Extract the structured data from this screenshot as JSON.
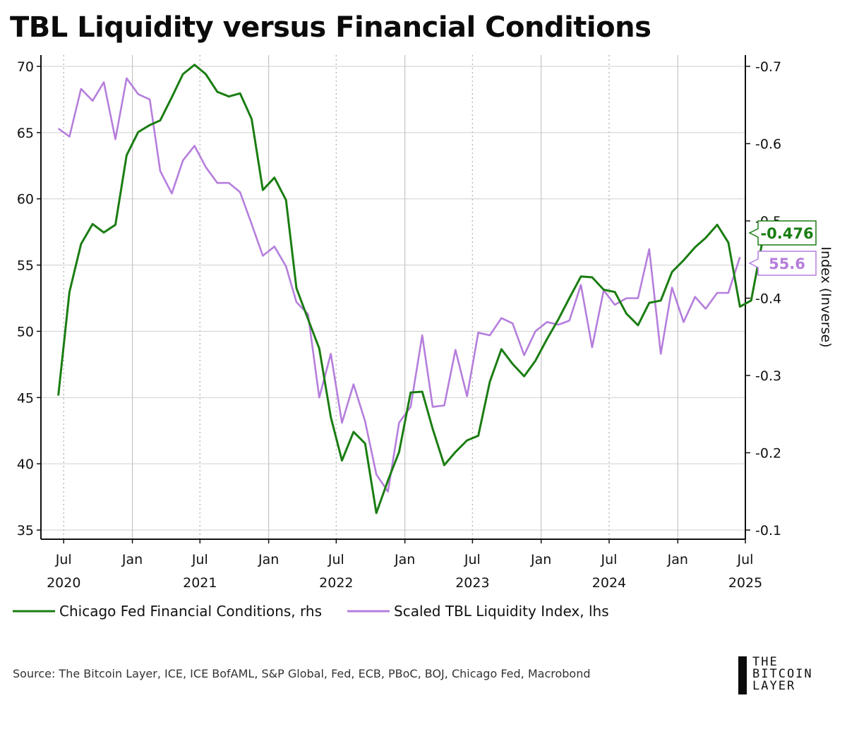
{
  "title": "TBL Liquidity versus Financial Conditions",
  "source": "Source: The Bitcoin Layer, ICE, ICE BofAML, S&P Global, Fed, ECB, PBoC, BOJ, Chicago Fed, Macrobond",
  "logo": {
    "line1": "THE",
    "line2": "BITCOIN",
    "line3": "LAYER"
  },
  "colors": {
    "green": "#1a7d12",
    "purple": "#b57edc",
    "grid": "#cfcfcf",
    "axis": "#111111"
  },
  "chart_data": {
    "type": "line",
    "right_axis_label": "Index (Inverse)",
    "x_tick_months": [
      "Jul",
      "Jan",
      "Jul",
      "Jan",
      "Jul",
      "Jan",
      "Jul",
      "Jan",
      "Jul",
      "Jan",
      "Jul"
    ],
    "x_tick_years": [
      "2020",
      "2021",
      "2022",
      "2023",
      "2024",
      "2025"
    ],
    "y_left": {
      "ticks": [
        "70",
        "65",
        "60",
        "55",
        "50",
        "45",
        "40",
        "35"
      ],
      "range": [
        35,
        70
      ]
    },
    "y_right": {
      "ticks": [
        "-0.7",
        "-0.6",
        "-0.5",
        "-0.4",
        "-0.3",
        "-0.2",
        "-0.1"
      ],
      "range": [
        -0.1,
        -0.7
      ],
      "inverted": true
    },
    "x_range": [
      "2020-05-01",
      "2025-07-01"
    ],
    "series": [
      {
        "name": "Chicago Fed Financial Conditions, rhs",
        "axis": "right",
        "start": "2020-06",
        "last_value_label": "-0.476",
        "values": [
          -0.274,
          -0.408,
          -0.47,
          -0.496,
          -0.485,
          -0.495,
          -0.585,
          -0.615,
          -0.624,
          -0.63,
          -0.66,
          -0.69,
          -0.702,
          -0.69,
          -0.667,
          -0.661,
          -0.665,
          -0.632,
          -0.54,
          -0.556,
          -0.527,
          -0.413,
          -0.373,
          -0.335,
          -0.246,
          -0.19,
          -0.227,
          -0.212,
          -0.122,
          -0.164,
          -0.201,
          -0.278,
          -0.279,
          -0.231,
          -0.184,
          -0.201,
          -0.216,
          -0.222,
          -0.292,
          -0.334,
          -0.315,
          -0.299,
          -0.319,
          -0.347,
          -0.373,
          -0.4,
          -0.428,
          -0.427,
          -0.411,
          -0.408,
          -0.38,
          -0.365,
          -0.394,
          -0.397,
          -0.434,
          -0.449,
          -0.466,
          -0.478,
          -0.495,
          -0.472,
          -0.389,
          -0.397,
          -0.476
        ]
      },
      {
        "name": "Scaled TBL Liquidity Index, lhs",
        "axis": "left",
        "start": "2020-06",
        "last_value_label": "55.6",
        "values": [
          65.3,
          64.7,
          68.3,
          67.4,
          68.8,
          64.5,
          69.1,
          67.9,
          67.5,
          62.1,
          60.4,
          62.9,
          64.0,
          62.4,
          61.2,
          61.2,
          60.5,
          58.1,
          55.7,
          56.4,
          54.9,
          52.2,
          51.3,
          45.0,
          48.3,
          43.1,
          46.0,
          43.2,
          39.2,
          37.9,
          43.1,
          44.3,
          49.7,
          44.3,
          44.4,
          48.6,
          45.1,
          49.9,
          49.7,
          51.0,
          50.6,
          48.2,
          50.0,
          50.7,
          50.5,
          50.8,
          53.5,
          48.8,
          53.1,
          52.0,
          52.5,
          52.5,
          56.2,
          48.3,
          53.3,
          50.7,
          52.6,
          51.7,
          52.9,
          52.9,
          55.6
        ]
      }
    ]
  }
}
